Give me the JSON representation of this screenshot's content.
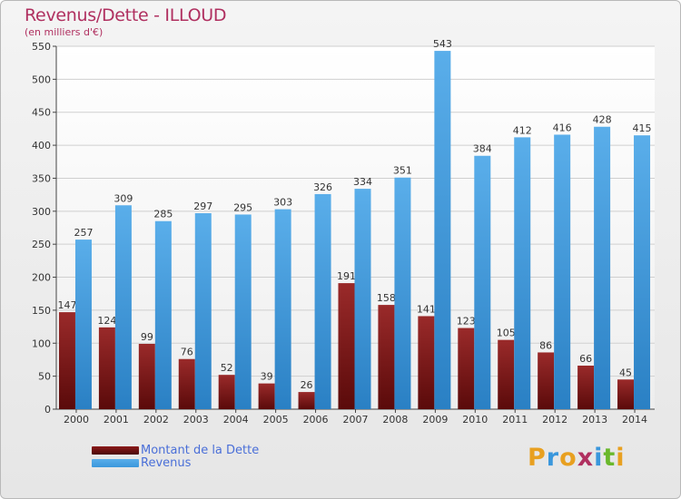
{
  "header": {
    "title": "Revenus/Dette - ILLOUD",
    "subtitle": "(en milliers d'€)"
  },
  "chart_data": {
    "type": "bar",
    "title": "Revenus/Dette - ILLOUD",
    "subtitle": "(en milliers d'€)",
    "xlabel": "",
    "ylabel": "",
    "ylim": [
      0,
      550
    ],
    "yticks": [
      0,
      50,
      100,
      150,
      200,
      250,
      300,
      350,
      400,
      450,
      500,
      550
    ],
    "grid": true,
    "legend_position": "bottom-left",
    "categories": [
      "2000",
      "2001",
      "2002",
      "2003",
      "2004",
      "2005",
      "2006",
      "2007",
      "2008",
      "2009",
      "2010",
      "2011",
      "2012",
      "2013",
      "2014"
    ],
    "series": [
      {
        "name": "Montant de la Dette",
        "color": "#8b1a1a",
        "values": [
          147,
          124,
          99,
          76,
          52,
          39,
          26,
          191,
          158,
          141,
          123,
          105,
          86,
          66,
          45
        ]
      },
      {
        "name": "Revenus",
        "color": "#3a97dc",
        "values": [
          257,
          309,
          285,
          297,
          295,
          303,
          326,
          334,
          351,
          543,
          384,
          412,
          416,
          428,
          415
        ]
      }
    ]
  },
  "logo": {
    "letters": [
      "P",
      "r",
      "o",
      "x",
      "i",
      "t",
      "i"
    ],
    "colors": [
      "#e8a020",
      "#3a97dc",
      "#e8a020",
      "#b03060",
      "#3a97dc",
      "#6ab82c",
      "#e8a020"
    ]
  }
}
